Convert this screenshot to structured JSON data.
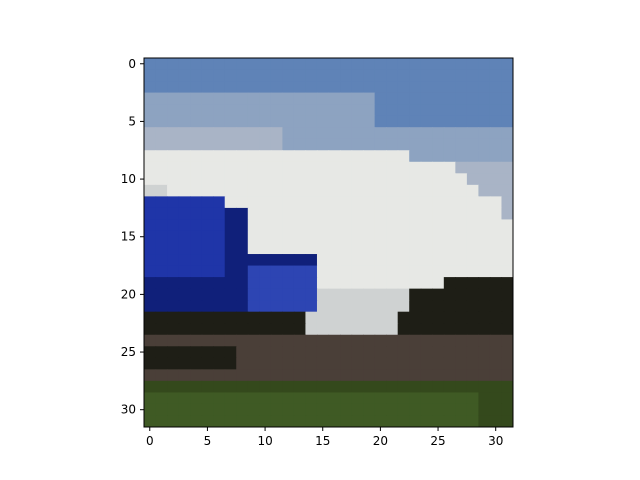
{
  "figure": {
    "image_description_label": "32x32 pixelated image: white vehicle/aircraft body with blue nose/tail section against blue sky and green ground",
    "palette": {
      "sky_top": "#5f83b7",
      "sky_mid": "#8da3c1",
      "sky_horizon": "#a9b4c6",
      "white_body": "#e7e8e5",
      "white_shadow": "#cfd2d2",
      "blue_dark": "#10207a",
      "blue_mid": "#1f35a8",
      "blue_light": "#2d45b3",
      "shadow_dark": "#1e1e16",
      "dirt": "#4a3f38",
      "grass": "#3f5a24",
      "grass_dark": "#34491c"
    }
  },
  "axes": {
    "x_ticks": [
      "0",
      "5",
      "10",
      "15",
      "20",
      "25",
      "30"
    ],
    "y_ticks": [
      "0",
      "5",
      "10",
      "15",
      "20",
      "25",
      "30"
    ],
    "x_range": [
      -0.5,
      31.5
    ],
    "y_range": [
      -0.5,
      31.5
    ]
  }
}
